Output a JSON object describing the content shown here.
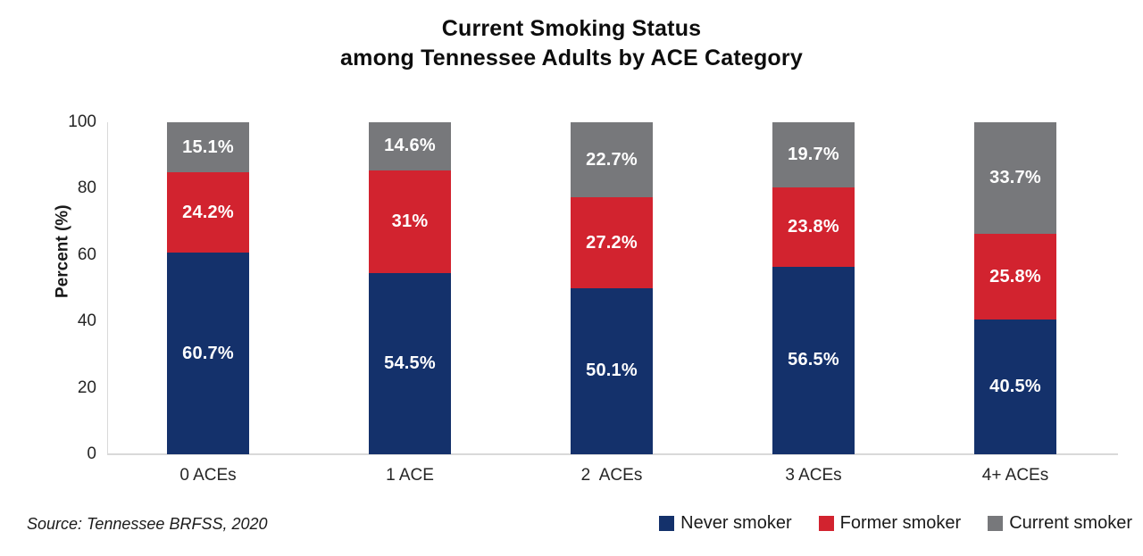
{
  "title": {
    "line1": "Current Smoking Status",
    "line2": "among Tennessee Adults by ACE Category"
  },
  "source": "Source: Tennessee BRFSS, 2020",
  "chart_data": {
    "type": "bar",
    "stacked": true,
    "title": "Current Smoking Status among Tennessee Adults by ACE Category",
    "xlabel": "",
    "ylabel": "Percent (%)",
    "ylim": [
      0,
      100
    ],
    "yticks": [
      0,
      20,
      40,
      60,
      80,
      100
    ],
    "grid": false,
    "legend_position": "bottom-right",
    "categories": [
      "0 ACEs",
      "1 ACE",
      "2  ACEs",
      "3 ACEs",
      "4+ ACEs"
    ],
    "series": [
      {
        "name": "Never smoker",
        "color": "#14316B",
        "values": [
          60.7,
          54.5,
          50.1,
          56.5,
          40.5
        ],
        "labels": [
          "60.7%",
          "54.5%",
          "50.1%",
          "56.5%",
          "40.5%"
        ]
      },
      {
        "name": "Former smoker",
        "color": "#D2232F",
        "values": [
          24.2,
          31,
          27.2,
          23.8,
          25.8
        ],
        "labels": [
          "24.2%",
          "31%",
          "27.2%",
          "23.8%",
          "25.8%"
        ]
      },
      {
        "name": "Current smoker",
        "color": "#77787B",
        "values": [
          15.1,
          14.6,
          22.7,
          19.7,
          33.7
        ],
        "labels": [
          "15.1%",
          "14.6%",
          "22.7%",
          "19.7%",
          "33.7%"
        ]
      }
    ]
  }
}
